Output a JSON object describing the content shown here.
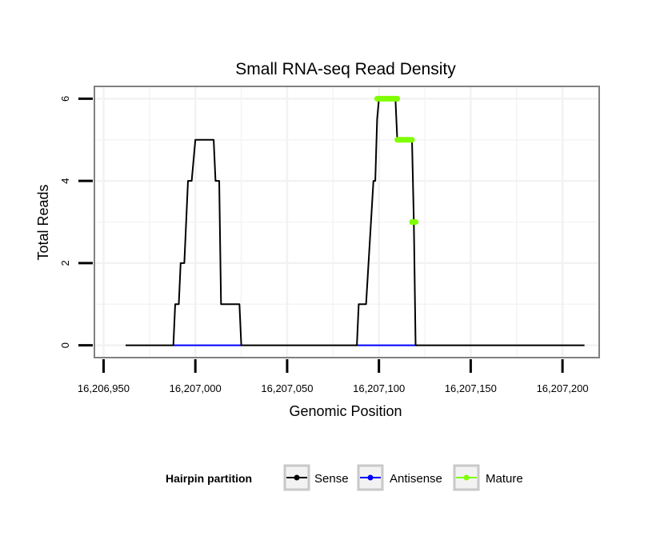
{
  "chart_data": {
    "type": "line",
    "title": "Small RNA-seq Read Density",
    "xlabel": "Genomic Position",
    "ylabel": "Total Reads",
    "xlim": [
      16206945,
      16207220
    ],
    "ylim": [
      -0.3,
      6.3
    ],
    "x_ticks": [
      16206950,
      16207000,
      16207050,
      16207100,
      16207150,
      16207200
    ],
    "x_tick_labels": [
      "16,206,950",
      "16,207,000",
      "16,207,050",
      "16,207,100",
      "16,207,150",
      "16,207,200"
    ],
    "y_ticks": [
      0,
      2,
      4,
      6
    ],
    "y_tick_labels": [
      "0",
      "2",
      "4",
      "6"
    ],
    "grid": true,
    "legend": {
      "title": "Hairpin partition",
      "position": "bottom",
      "items": [
        {
          "label": "Sense",
          "color": "#000000"
        },
        {
          "label": "Antisense",
          "color": "#0000ff"
        },
        {
          "label": "Mature",
          "color": "#7fff00"
        }
      ]
    },
    "series": [
      {
        "name": "Sense",
        "color": "#000000",
        "x": [
          16206962,
          16206988,
          16206989,
          16206991,
          16206992,
          16206994,
          16206995,
          16206996,
          16206997,
          16206998,
          16207000,
          16207001,
          16207010,
          16207011,
          16207012,
          16207013,
          16207014,
          16207024,
          16207025,
          16207088,
          16207089,
          16207092,
          16207093,
          16207097,
          16207098,
          16207099,
          16207100,
          16207109,
          16207110,
          16207111,
          16207118,
          16207119,
          16207120,
          16207121,
          16207212
        ],
        "y": [
          0,
          0,
          1,
          1,
          2,
          2,
          3,
          4,
          4,
          4,
          5,
          5,
          5,
          4,
          4,
          4,
          1,
          1,
          0,
          0,
          1,
          1,
          1,
          4,
          4,
          5.5,
          6,
          6,
          5,
          5,
          5,
          3,
          0,
          0,
          0
        ]
      },
      {
        "name": "Antisense",
        "color": "#0000ff",
        "x": [
          16206988,
          16207025,
          16207088,
          16207121
        ],
        "y": [
          0,
          0,
          0,
          0
        ]
      },
      {
        "name": "Mature",
        "color": "#7fff00",
        "segments": [
          {
            "x": [
              16207099,
              16207110
            ],
            "y": 6
          },
          {
            "x": [
              16207110,
              16207118
            ],
            "y": 5
          },
          {
            "x": [
              16207118,
              16207120
            ],
            "y": 3
          }
        ]
      }
    ]
  }
}
